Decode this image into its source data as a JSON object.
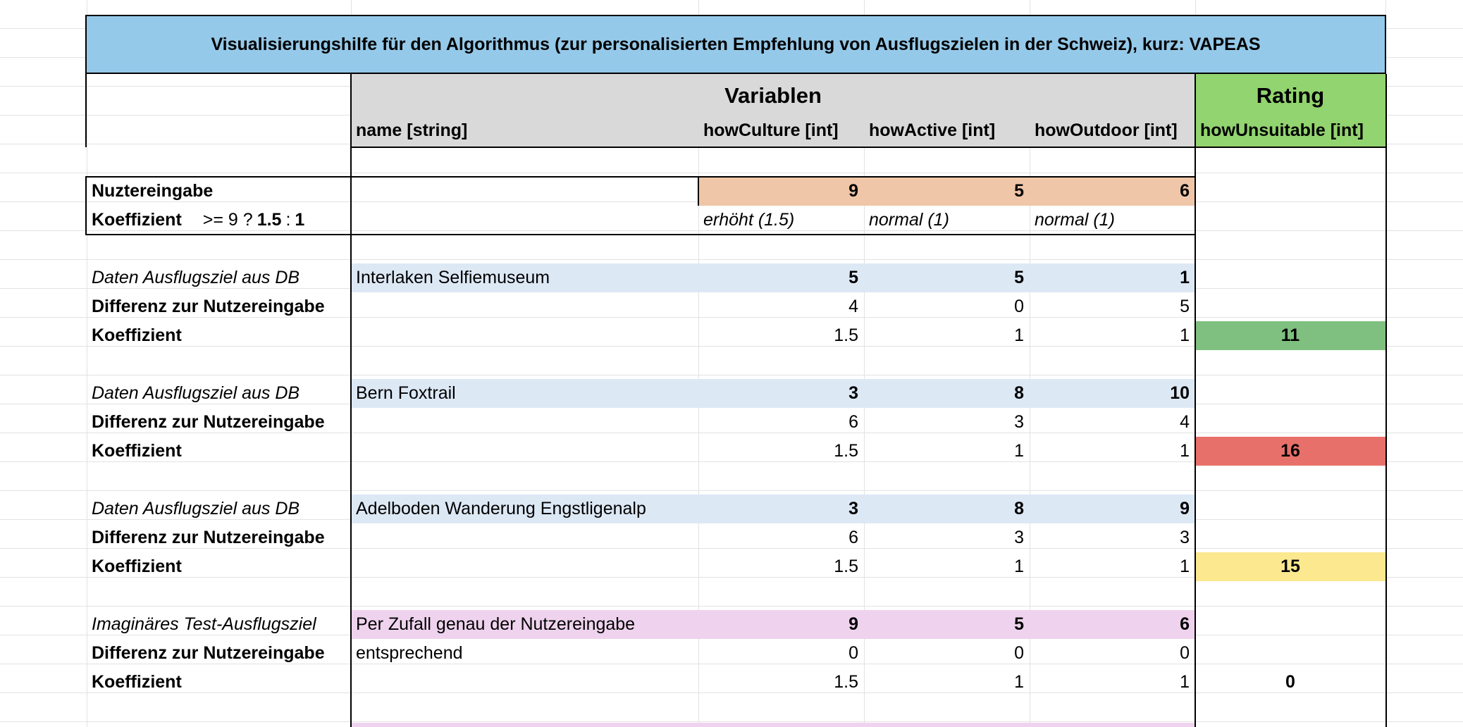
{
  "title": "Visualisierungshilfe für den Algorithmus (zur personalisierten Empfehlung von Ausflugszielen in der Schweiz), kurz: VAPEAS",
  "headers": {
    "variablen": "Variablen",
    "rating": "Rating",
    "name": "name [string]",
    "culture": "howCulture [int]",
    "active": "howActive [int]",
    "outdoor": "howOutdoor [int]",
    "unsuitable": "howUnsuitable [int]"
  },
  "user_input": {
    "label": "Nuztereingabe",
    "culture": "9",
    "active": "5",
    "outdoor": "6",
    "coef_label": "Koeffizient",
    "coef_rule_prefix": ">= 9 ?",
    "coef_rule_a": "1.5",
    "coef_rule_sep": ":",
    "coef_rule_b": "1",
    "coef_culture": "erhöht (1.5)",
    "coef_active": "normal (1)",
    "coef_outdoor": "normal (1)"
  },
  "blocks": [
    {
      "label": "Daten Ausflugsziel aus DB",
      "name": "Interlaken Selfiemuseum",
      "values": [
        "5",
        "5",
        "1"
      ],
      "diff_label": "Differenz zur Nutzereingabe",
      "diff_name": "",
      "diff": [
        "4",
        "0",
        "5"
      ],
      "coef_label": "Koeffizient",
      "coef": [
        "1.5",
        "1",
        "1"
      ],
      "rating": "11",
      "rating_color": "#7fbf7f",
      "row_color": "#dde8f5"
    },
    {
      "label": "Daten Ausflugsziel aus DB",
      "name": "Bern Foxtrail",
      "values": [
        "3",
        "8",
        "10"
      ],
      "diff_label": "Differenz zur Nutzereingabe",
      "diff_name": "",
      "diff": [
        "6",
        "3",
        "4"
      ],
      "coef_label": "Koeffizient",
      "coef": [
        "1.5",
        "1",
        "1"
      ],
      "rating": "16",
      "rating_color": "#e8706a",
      "row_color": "#dde8f5"
    },
    {
      "label": "Daten Ausflugsziel aus DB",
      "name": "Adelboden Wanderung Engstligenalp",
      "values": [
        "3",
        "8",
        "9"
      ],
      "diff_label": "Differenz zur Nutzereingabe",
      "diff_name": "",
      "diff": [
        "6",
        "3",
        "3"
      ],
      "coef_label": "Koeffizient",
      "coef": [
        "1.5",
        "1",
        "1"
      ],
      "rating": "15",
      "rating_color": "#fbe88f",
      "row_color": "#dde8f5"
    },
    {
      "label": "Imaginäres Test-Ausflugsziel",
      "name": "Per Zufall genau der Nutzereingabe",
      "values": [
        "9",
        "5",
        "6"
      ],
      "diff_label": "Differenz zur Nutzereingabe",
      "diff_name": "entsprechend",
      "diff": [
        "0",
        "0",
        "0"
      ],
      "coef_label": "Koeffizient",
      "coef": [
        "1.5",
        "1",
        "1"
      ],
      "rating": "0",
      "rating_color": "",
      "row_color": "#efd3ee"
    }
  ],
  "colors": {
    "title_bg": "#95c9e9",
    "header_gray": "#d9d9d9",
    "rating_header": "#92d46f",
    "user_input_bg": "#f0c6a8"
  }
}
